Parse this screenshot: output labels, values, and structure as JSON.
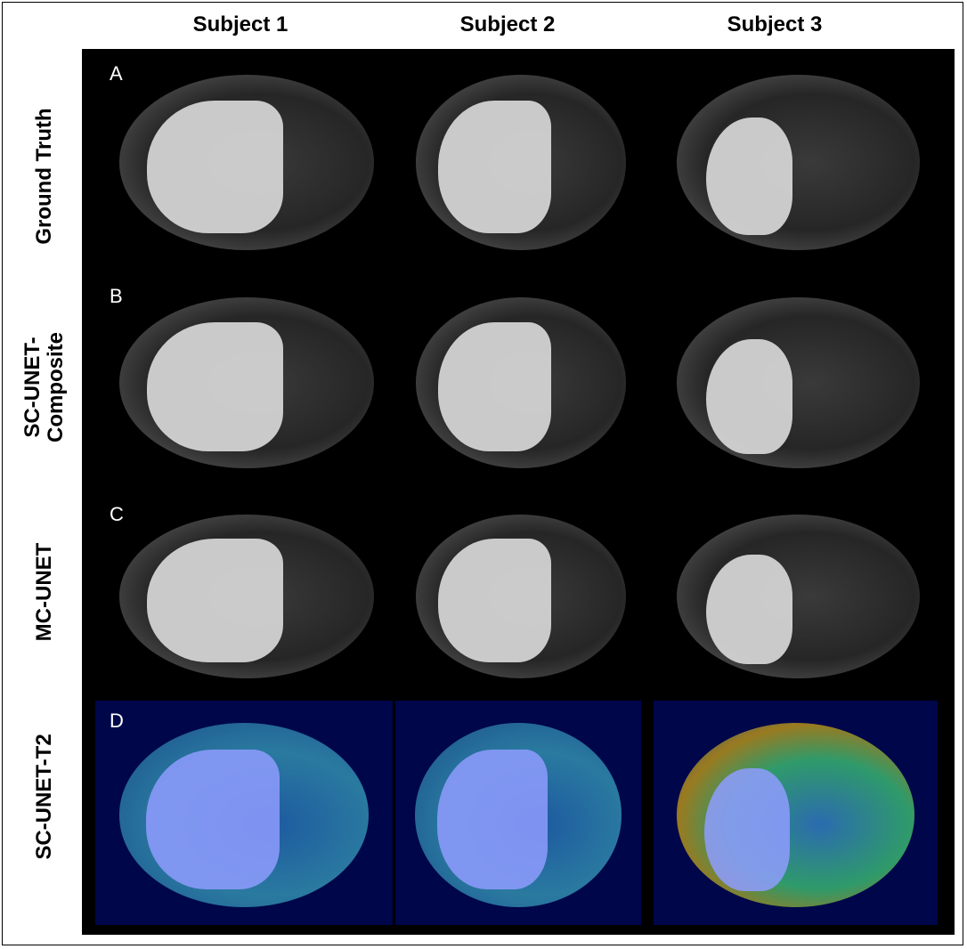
{
  "columns": [
    "Subject 1",
    "Subject 2",
    "Subject 3"
  ],
  "rows": [
    {
      "letter": "A",
      "label_lines": [
        "Ground Truth"
      ]
    },
    {
      "letter": "B",
      "label_lines": [
        "SC-UNET-",
        "Composite"
      ]
    },
    {
      "letter": "C",
      "label_lines": [
        "MC-UNET"
      ]
    },
    {
      "letter": "D",
      "label_lines": [
        "SC-UNET-T2"
      ]
    }
  ],
  "colors": {
    "panel_background": "#000000",
    "map_background": "#00064a",
    "liver_overlay_gray": "#d8d8d8",
    "liver_overlay_blue": "#8f9cff"
  }
}
